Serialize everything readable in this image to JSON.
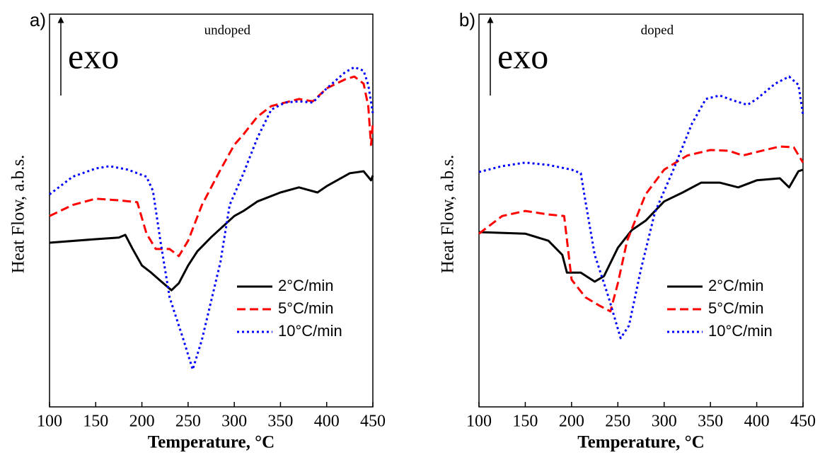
{
  "chart_data": [
    {
      "type": "line",
      "panel_label": "a)",
      "annotation": "exo",
      "subtitle": "undoped",
      "xlabel": "Temperature, °C",
      "ylabel": "Heat Flow, a.b.s.",
      "xlim": [
        100,
        450
      ],
      "xticks": [
        100,
        150,
        200,
        250,
        300,
        350,
        400,
        450
      ],
      "ylim": [
        0,
        100
      ],
      "legend": "lower right",
      "series": [
        {
          "name": "2°C/min",
          "color": "#000000",
          "dash": "solid",
          "x": [
            100,
            150,
            175,
            182,
            190,
            200,
            210,
            220,
            232,
            240,
            250,
            260,
            275,
            300,
            310,
            325,
            350,
            370,
            390,
            400,
            425,
            440,
            448,
            450
          ],
          "values": [
            41.8,
            42.7,
            43.1,
            43.8,
            40.2,
            36.0,
            34.2,
            32.1,
            29.7,
            31.5,
            36.0,
            39.6,
            43.2,
            48.6,
            49.9,
            52.3,
            54.6,
            55.9,
            54.6,
            56.2,
            59.5,
            60.0,
            57.7,
            58.9
          ]
        },
        {
          "name": "5°C/min",
          "color": "#ff0000",
          "dash": "dashed",
          "x": [
            100,
            125,
            150,
            175,
            195,
            205,
            215,
            230,
            240,
            250,
            265,
            285,
            300,
            310,
            325,
            340,
            355,
            370,
            385,
            400,
            420,
            430,
            440,
            445,
            448,
            450
          ],
          "values": [
            48.6,
            51.4,
            53.0,
            52.6,
            52.1,
            44.1,
            40.2,
            40.2,
            38.4,
            42.3,
            51.4,
            60.4,
            66.7,
            69.4,
            73.9,
            76.6,
            77.5,
            78.4,
            77.8,
            81.1,
            83.4,
            84.1,
            82.3,
            76.6,
            66.7,
            72.1
          ]
        },
        {
          "name": "10°C/min",
          "color": "#0000ff",
          "dash": "dotted",
          "x": [
            100,
            125,
            150,
            165,
            185,
            205,
            212,
            220,
            230,
            245,
            255,
            265,
            285,
            295,
            310,
            325,
            340,
            355,
            370,
            385,
            400,
            420,
            430,
            440,
            445,
            450
          ],
          "values": [
            54.1,
            58.6,
            60.7,
            61.3,
            60.4,
            58.6,
            55.0,
            42.3,
            27.9,
            17.1,
            9.5,
            17.1,
            36.9,
            51.4,
            59.5,
            68.5,
            75.7,
            77.5,
            77.8,
            77.5,
            81.1,
            85.2,
            86.5,
            85.6,
            82.0,
            74.8
          ]
        }
      ]
    },
    {
      "type": "line",
      "panel_label": "b)",
      "annotation": "exo",
      "subtitle": "doped",
      "xlabel": "Temperature, °C",
      "ylabel": "Heat Flow, a.b.s.",
      "xlim": [
        100,
        450
      ],
      "xticks": [
        100,
        150,
        200,
        250,
        300,
        350,
        400,
        450
      ],
      "ylim": [
        0,
        100
      ],
      "legend": "lower right",
      "series": [
        {
          "name": "2°C/min",
          "color": "#000000",
          "dash": "solid",
          "x": [
            100,
            150,
            175,
            190,
            195,
            210,
            225,
            235,
            250,
            265,
            280,
            300,
            320,
            340,
            360,
            380,
            400,
            425,
            435,
            445,
            450
          ],
          "values": [
            44.5,
            44.1,
            42.3,
            38.7,
            34.2,
            34.2,
            31.9,
            33.3,
            40.5,
            45.0,
            47.4,
            52.3,
            54.6,
            57.1,
            57.1,
            55.9,
            57.7,
            58.2,
            55.9,
            60.0,
            60.4
          ]
        },
        {
          "name": "5°C/min",
          "color": "#ff0000",
          "dash": "dashed",
          "x": [
            100,
            125,
            150,
            175,
            192,
            200,
            215,
            230,
            242,
            250,
            260,
            280,
            300,
            325,
            350,
            370,
            385,
            400,
            425,
            440,
            450
          ],
          "values": [
            44.1,
            48.6,
            49.9,
            49.0,
            48.6,
            32.4,
            27.9,
            25.8,
            24.3,
            31.5,
            42.3,
            54.1,
            60.4,
            64.0,
            65.4,
            65.2,
            64.0,
            64.9,
            66.3,
            66.1,
            62.2
          ]
        },
        {
          "name": "10°C/min",
          "color": "#0000ff",
          "dash": "dotted",
          "x": [
            100,
            125,
            150,
            175,
            200,
            210,
            215,
            225,
            240,
            253,
            262,
            275,
            290,
            310,
            330,
            345,
            360,
            375,
            390,
            400,
            420,
            435,
            445,
            450
          ],
          "values": [
            59.8,
            61.3,
            62.2,
            61.6,
            60.4,
            59.5,
            52.3,
            38.7,
            27.9,
            17.5,
            20.7,
            35.1,
            49.5,
            60.4,
            72.1,
            78.4,
            79.3,
            78.0,
            76.9,
            78.4,
            82.3,
            84.1,
            82.0,
            74.4
          ]
        }
      ]
    }
  ]
}
